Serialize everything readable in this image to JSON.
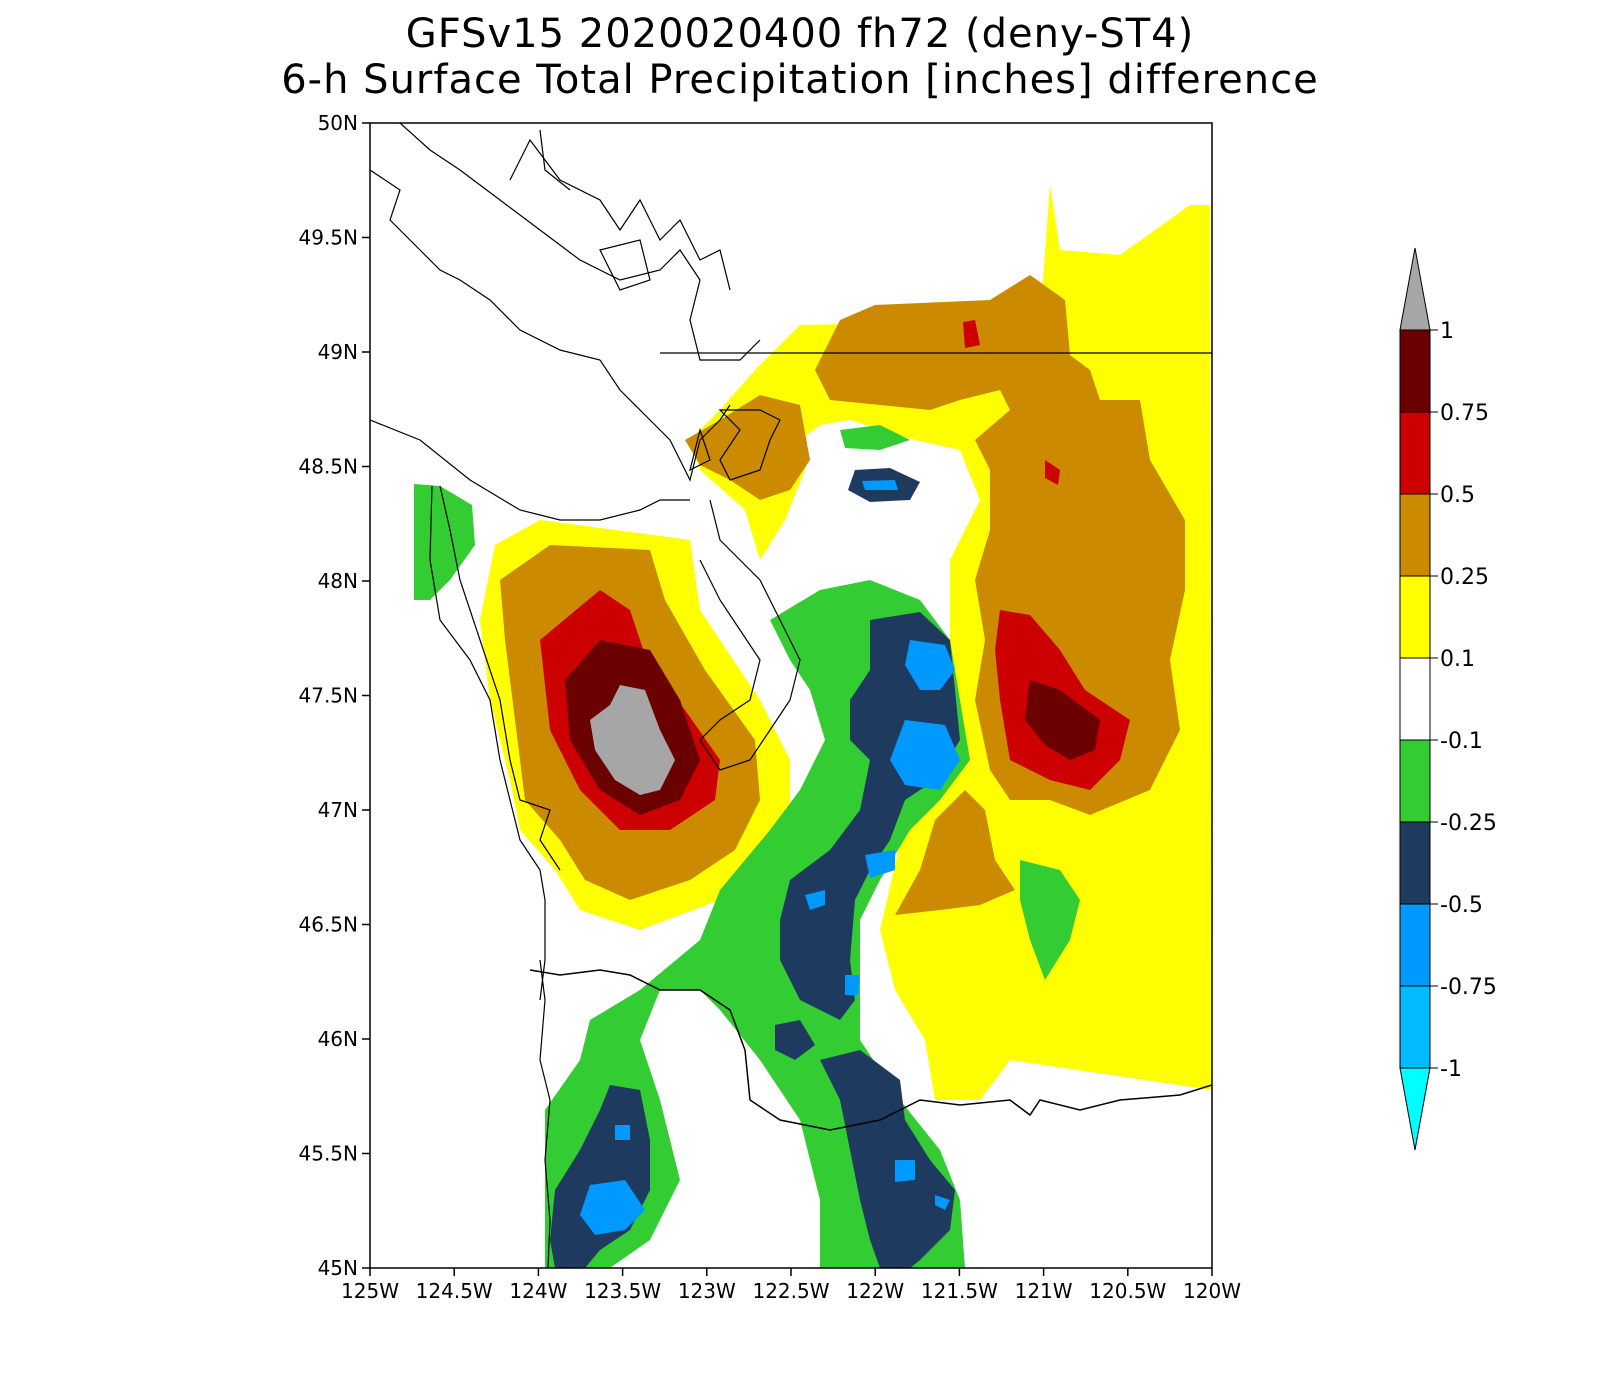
{
  "title": {
    "line1": "GFSv15 2020020400 fh72 (deny-ST4)",
    "line2": "6-h Surface Total Precipitation [inches] difference"
  },
  "map": {
    "lon_range": [
      -125,
      -120
    ],
    "lat_range": [
      45,
      50
    ],
    "x_tick_labels": [
      "125W",
      "124.5W",
      "124W",
      "123.5W",
      "123W",
      "122.5W",
      "122W",
      "121.5W",
      "121W",
      "120.5W",
      "120W"
    ],
    "y_tick_labels": [
      "45N",
      "45.5N",
      "46N",
      "46.5N",
      "47N",
      "47.5N",
      "48N",
      "48.5N",
      "49N",
      "49.5N",
      "50N"
    ]
  },
  "colorbar": {
    "labels": [
      "1",
      "0.75",
      "0.5",
      "0.25",
      "0.1",
      "-0.1",
      "-0.25",
      "-0.5",
      "-0.75",
      "-1"
    ],
    "colors": {
      "above_1": "#a6a6a6",
      "0.75_1": "#6b0000",
      "0.5_0.75": "#cc0000",
      "0.25_0.5": "#cc8a00",
      "0.1_0.25": "#ffff00",
      "neutral": "#ffffff",
      "-0.25_-0.1": "#33cc33",
      "-0.5_-0.25": "#1f3a5f",
      "-0.75_-0.5": "#0099ff",
      "-1_-0.75": "#00bbff",
      "below_-1": "#00ffff"
    }
  }
}
